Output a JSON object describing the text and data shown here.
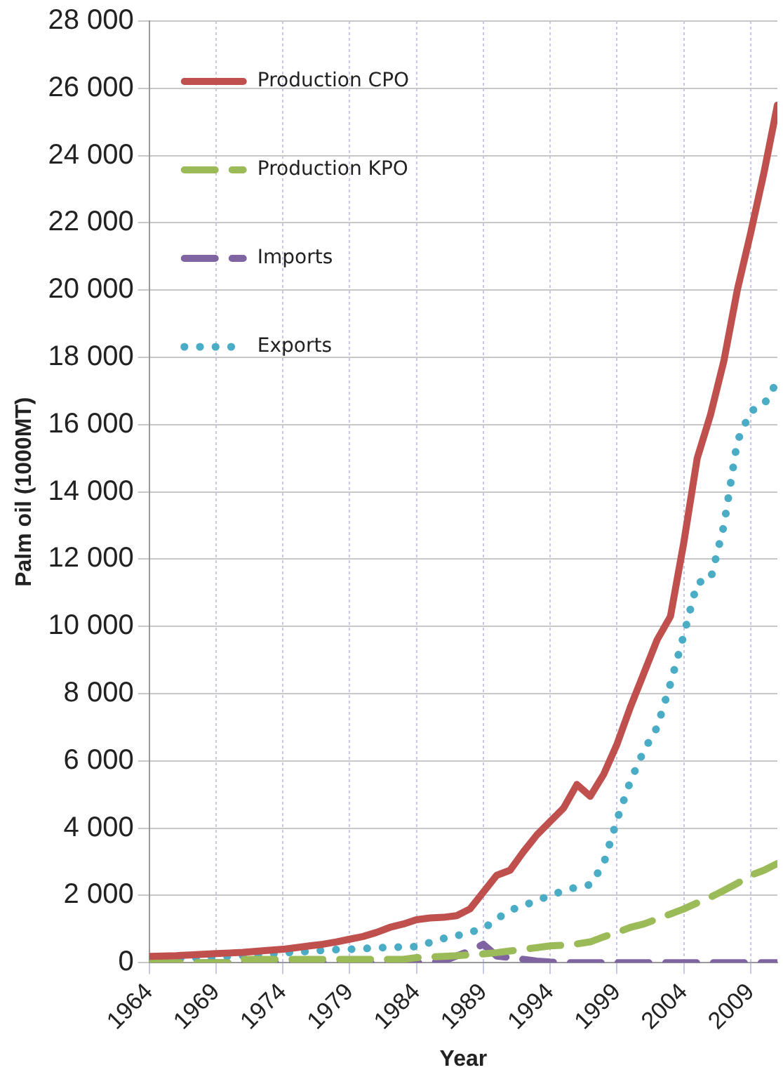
{
  "chart_data": {
    "type": "line",
    "xlabel": "Year",
    "ylabel": "Palm oil (1000MT)",
    "x": [
      1964,
      1965,
      1966,
      1967,
      1968,
      1969,
      1970,
      1971,
      1972,
      1973,
      1974,
      1975,
      1976,
      1977,
      1978,
      1979,
      1980,
      1981,
      1982,
      1983,
      1984,
      1985,
      1986,
      1987,
      1988,
      1989,
      1990,
      1991,
      1992,
      1993,
      1994,
      1995,
      1996,
      1997,
      1998,
      1999,
      2000,
      2001,
      2002,
      2003,
      2004,
      2005,
      2006,
      2007,
      2008,
      2009,
      2010,
      2011
    ],
    "series": [
      {
        "name": "Production CPO",
        "color": "#c0504d",
        "line_style": "solid",
        "values": [
          190,
          200,
          210,
          230,
          250,
          270,
          290,
          310,
          340,
          370,
          400,
          450,
          500,
          550,
          620,
          700,
          780,
          900,
          1050,
          1150,
          1280,
          1330,
          1350,
          1400,
          1600,
          2100,
          2600,
          2750,
          3300,
          3800,
          4200,
          4600,
          5300,
          4950,
          5600,
          6500,
          7600,
          8600,
          9600,
          10300,
          12500,
          15000,
          16300,
          17900,
          20000,
          21700,
          23500,
          25500
        ]
      },
      {
        "name": "Production KPO",
        "color": "#9bbb59",
        "line_style": "dashed",
        "values": [
          0,
          0,
          0,
          0,
          0,
          0,
          0,
          100,
          100,
          100,
          100,
          100,
          100,
          100,
          100,
          100,
          100,
          100,
          100,
          100,
          150,
          170,
          190,
          210,
          240,
          260,
          300,
          350,
          400,
          450,
          500,
          520,
          560,
          620,
          770,
          900,
          1050,
          1150,
          1300,
          1450,
          1600,
          1780,
          1950,
          2150,
          2360,
          2600,
          2750,
          2950
        ]
      },
      {
        "name": "Imports",
        "color": "#8064a2",
        "line_style": "dashed",
        "values": [
          0,
          0,
          0,
          0,
          0,
          0,
          0,
          0,
          0,
          0,
          0,
          0,
          0,
          0,
          0,
          0,
          0,
          0,
          0,
          0,
          0,
          0,
          50,
          200,
          350,
          550,
          200,
          150,
          100,
          50,
          20,
          0,
          0,
          0,
          0,
          0,
          0,
          0,
          0,
          0,
          0,
          0,
          0,
          0,
          0,
          0,
          0,
          0
        ]
      },
      {
        "name": "Exports",
        "color": "#4bacc6",
        "line_style": "dotted",
        "values": [
          110,
          120,
          130,
          140,
          150,
          170,
          190,
          210,
          230,
          260,
          290,
          320,
          340,
          370,
          390,
          400,
          420,
          440,
          460,
          470,
          480,
          600,
          720,
          800,
          910,
          1010,
          1300,
          1560,
          1700,
          1850,
          2000,
          2140,
          2250,
          2320,
          2940,
          4250,
          5400,
          6300,
          7000,
          8300,
          9750,
          11300,
          11400,
          13000,
          15500,
          16400,
          16600,
          17300
        ]
      }
    ],
    "xlim": [
      1964,
      2011
    ],
    "xticks": [
      1964,
      1969,
      1974,
      1979,
      1984,
      1989,
      1994,
      1999,
      2004,
      2009
    ],
    "ylim": [
      0,
      28000
    ],
    "yticks": [
      {
        "value": 0,
        "label": "0"
      },
      {
        "value": 2000,
        "label": "2 000"
      },
      {
        "value": 4000,
        "label": "4 000"
      },
      {
        "value": 6000,
        "label": "6 000"
      },
      {
        "value": 8000,
        "label": "8 000"
      },
      {
        "value": 10000,
        "label": "10 000"
      },
      {
        "value": 12000,
        "label": "12 000"
      },
      {
        "value": 14000,
        "label": "14 000"
      },
      {
        "value": 16000,
        "label": "16 000"
      },
      {
        "value": 18000,
        "label": "18 000"
      },
      {
        "value": 20000,
        "label": "20 000"
      },
      {
        "value": 22000,
        "label": "22 000"
      },
      {
        "value": 24000,
        "label": "24 000"
      },
      {
        "value": 26000,
        "label": "26 000"
      },
      {
        "value": 28000,
        "label": "28 000"
      }
    ],
    "grid": true,
    "legend": "top left",
    "marker": "none"
  }
}
